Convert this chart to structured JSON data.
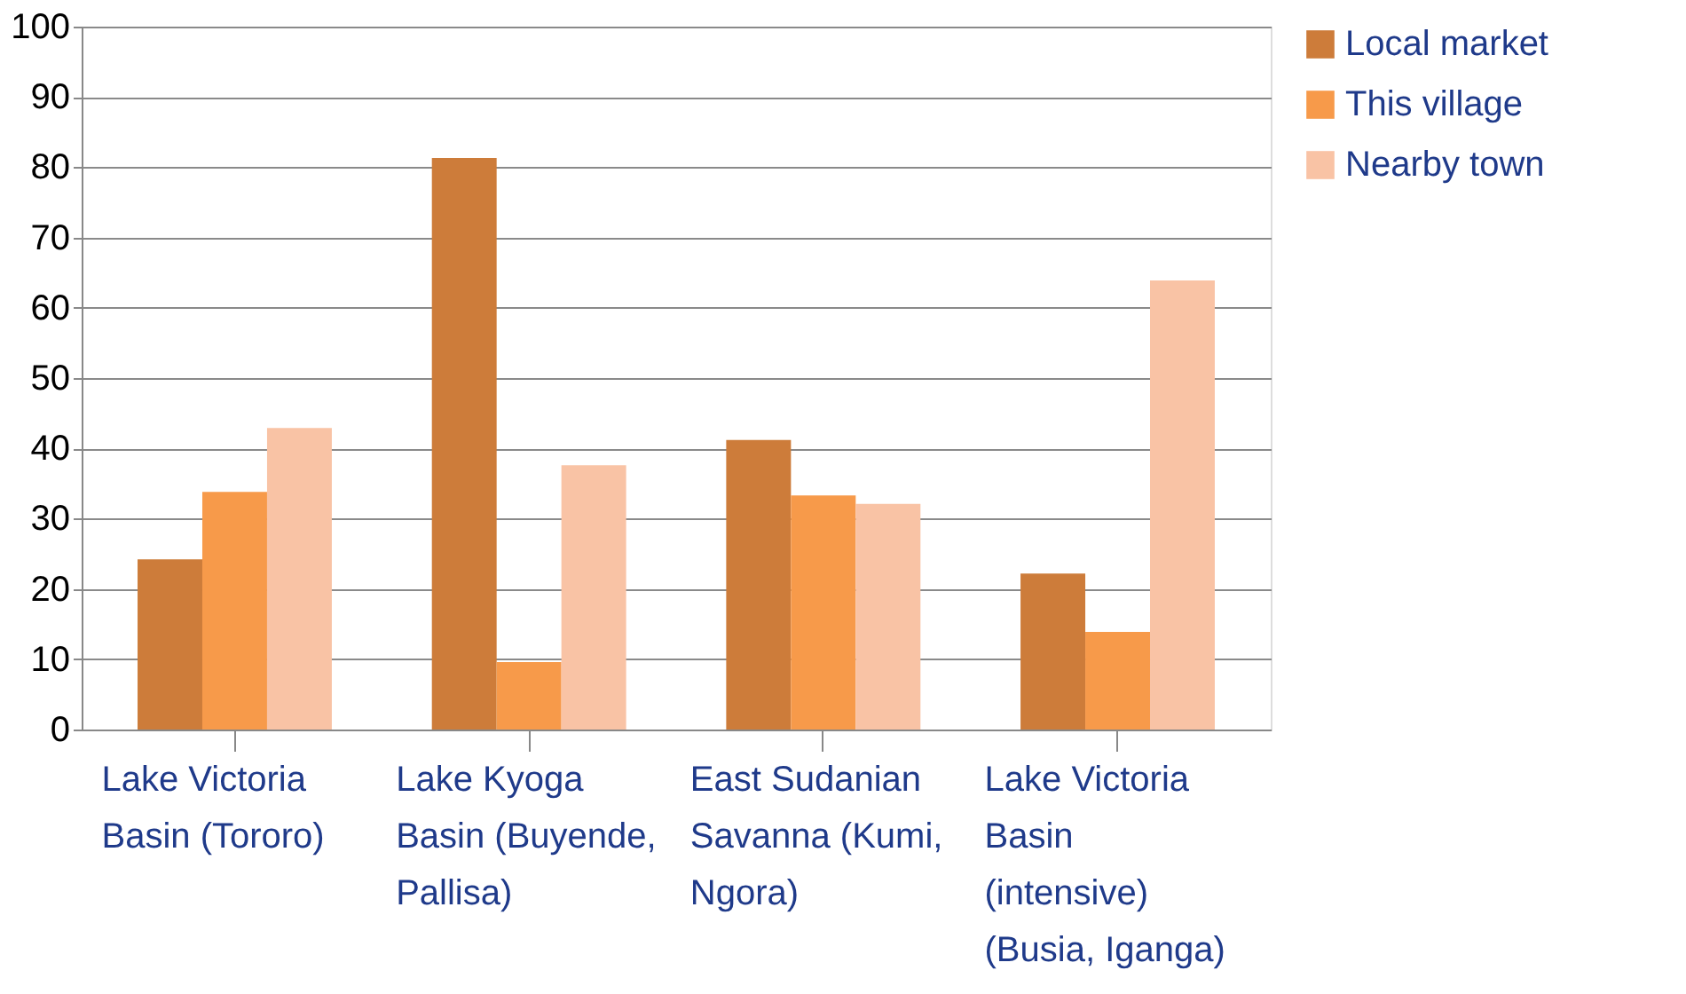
{
  "chart_data": {
    "type": "bar",
    "categories": [
      "Lake Victoria Basin (Tororo)",
      "Lake Kyoga Basin (Buyende, Pallisa)",
      "East Sudanian Savanna (Kumi, Ngora)",
      "Lake Victoria Basin (intensive) (Busia, Iganga)"
    ],
    "series": [
      {
        "name": "Local market",
        "color": "#cd7c3a",
        "values": [
          24.2,
          81.3,
          41.2,
          22.2
        ]
      },
      {
        "name": "This village",
        "color": "#f79a4a",
        "values": [
          33.8,
          9.6,
          33.3,
          13.9
        ]
      },
      {
        "name": "Nearby town",
        "color": "#f9c3a5",
        "values": [
          42.9,
          37.6,
          32.1,
          63.9
        ]
      }
    ],
    "ylim": [
      0,
      100
    ],
    "yticks": [
      0,
      10,
      20,
      30,
      40,
      50,
      60,
      70,
      80,
      90,
      100
    ],
    "grid": "y",
    "legend": "right"
  }
}
